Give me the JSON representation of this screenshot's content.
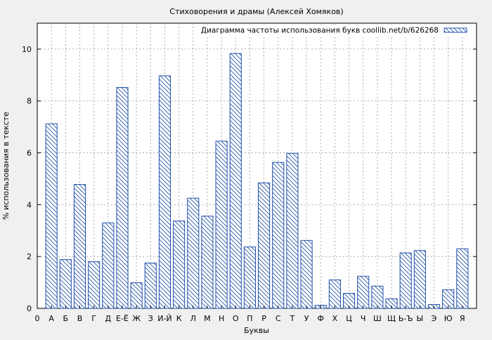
{
  "chart_data": {
    "type": "bar",
    "title": "Стиховорения и драмы (Алексей Хомяков)",
    "xlabel": "Буквы",
    "ylabel": "% использования в тексте",
    "legend": "Диаграмма частоты использования букв coollib.net/b/626268",
    "legend_position": "top-right",
    "grid": true,
    "ylim": [
      0,
      11
    ],
    "yticks": [
      0,
      2,
      4,
      6,
      8,
      10
    ],
    "x_first_label": "0",
    "categories": [
      "А",
      "Б",
      "В",
      "Г",
      "Д",
      "Е-Ё",
      "Ж",
      "З",
      "И-Й",
      "К",
      "Л",
      "М",
      "Н",
      "О",
      "П",
      "Р",
      "С",
      "Т",
      "У",
      "Ф",
      "Х",
      "Ц",
      "Ч",
      "Ш",
      "Щ",
      "Ь-Ъ",
      "Ы",
      "Э",
      "Ю",
      "Я"
    ],
    "values": [
      7.12,
      1.88,
      4.78,
      1.8,
      3.3,
      8.52,
      0.99,
      1.75,
      8.97,
      3.37,
      4.25,
      3.56,
      6.45,
      9.83,
      2.37,
      4.84,
      5.63,
      5.98,
      2.62,
      0.12,
      1.1,
      0.58,
      1.24,
      0.86,
      0.37,
      2.14,
      2.23,
      0.15,
      0.72,
      2.3
    ],
    "colors": {
      "bar_stroke": "#1f4fa8",
      "background": "#f0f0f0",
      "plot_background": "#ffffff",
      "grid": "#999999"
    }
  }
}
